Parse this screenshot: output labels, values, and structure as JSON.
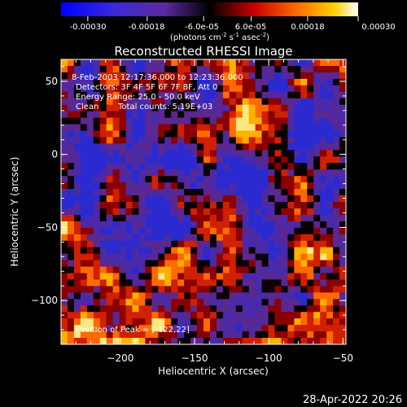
{
  "colorbar": {
    "ticks": [
      "-0.00030",
      "-0.00018",
      "-6.0e-05",
      "6.0e-05",
      "0.00018",
      "0.00030"
    ],
    "unit_label": "(photons cm",
    "unit_sup1": "-2",
    "unit_mid": " s",
    "unit_sup2": "-1",
    "unit_mid2": " asec",
    "unit_sup3": "-2",
    "unit_end": ")",
    "range": [
      -0.0003,
      0.0003
    ]
  },
  "chart_data": {
    "type": "heatmap",
    "title": "Reconstructed RHESSI Image",
    "xlabel": "Heliocentric X (arcsec)",
    "ylabel": "Heliocentric Y (arcsec)",
    "xlim": [
      -240,
      -48
    ],
    "ylim": [
      -130,
      65
    ],
    "xticks": [
      -200,
      -150,
      -100,
      -50
    ],
    "yticks": [
      50,
      0,
      -50,
      -100
    ],
    "colormap": "hot-cold (blue-purple-black-red-yellow-white)",
    "peak_position": [
      -122,
      22
    ]
  },
  "annotations": {
    "line1": "8-Feb-2003 12:17:36.000 to 12:23:36.000",
    "line2": "Detectors: 3F 4F 5F 6F 7F 8F, Att 0",
    "line3": "Energy Range: 25.0 - 50.0 keV",
    "line4_a": "Clean",
    "line4_b": "Total counts: 5.19E+03",
    "peak": "Position of Peak = [-122,22]"
  },
  "footer": {
    "timestamp": "28-Apr-2022 20:26"
  }
}
